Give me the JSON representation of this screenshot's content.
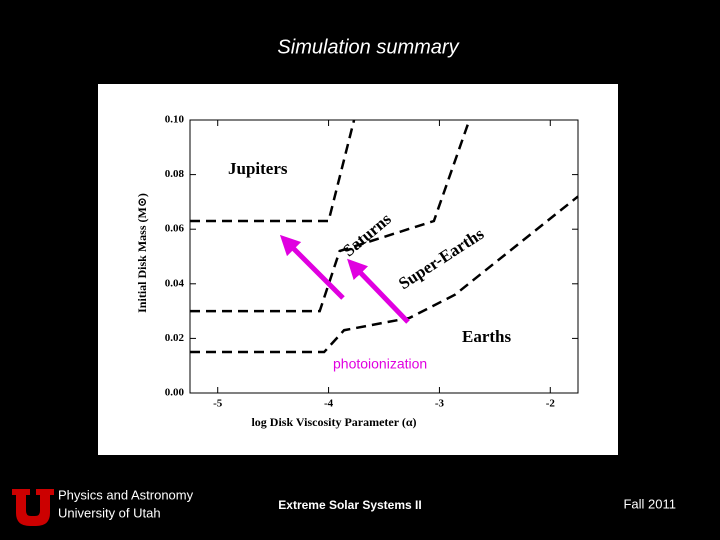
{
  "slide": {
    "title": "Simulation summary",
    "footer": {
      "department": [
        "Physics and Astronomy",
        "University of Utah"
      ],
      "event": "Extreme Solar Systems II",
      "date": "Fall 2011"
    }
  },
  "chart_data": {
    "type": "line",
    "xlabel": "log Disk Viscosity Parameter (α)",
    "ylabel": "Initial Disk Mass (M⊙)",
    "xlim": [
      -5.25,
      -1.75
    ],
    "xticks": [
      -5,
      -4,
      -3,
      -2
    ],
    "ylim": [
      0,
      0.1
    ],
    "yticks": [
      {
        "value": 0,
        "label": "0.00"
      },
      {
        "value": 0.02,
        "label": "0.02"
      },
      {
        "value": 0.04,
        "label": "0.04"
      },
      {
        "value": 0.06,
        "label": "0.06"
      },
      {
        "value": 0.08,
        "label": "0.08"
      },
      {
        "value": 0.1,
        "label": "0.10"
      }
    ],
    "line_style": "dashed",
    "series": [
      {
        "color": "#000000",
        "x": [
          -5.25,
          -4.0,
          -3.77
        ],
        "values": [
          0.063,
          0.063,
          0.1
        ]
      },
      {
        "color": "#000000",
        "x": [
          -5.25,
          -4.08,
          -3.9,
          -3.05,
          -2.73
        ],
        "values": [
          0.03,
          0.03,
          0.052,
          0.063,
          0.1
        ]
      },
      {
        "color": "#000000",
        "x": [
          -5.25,
          -4.04,
          -3.86,
          -3.27,
          -2.86,
          -1.75
        ],
        "values": [
          0.015,
          0.015,
          0.023,
          0.0275,
          0.036,
          0.072
        ]
      }
    ],
    "annotations": [
      "Jupiters",
      "Saturns",
      "Super-Earths",
      "Earths",
      "photoionization"
    ]
  }
}
